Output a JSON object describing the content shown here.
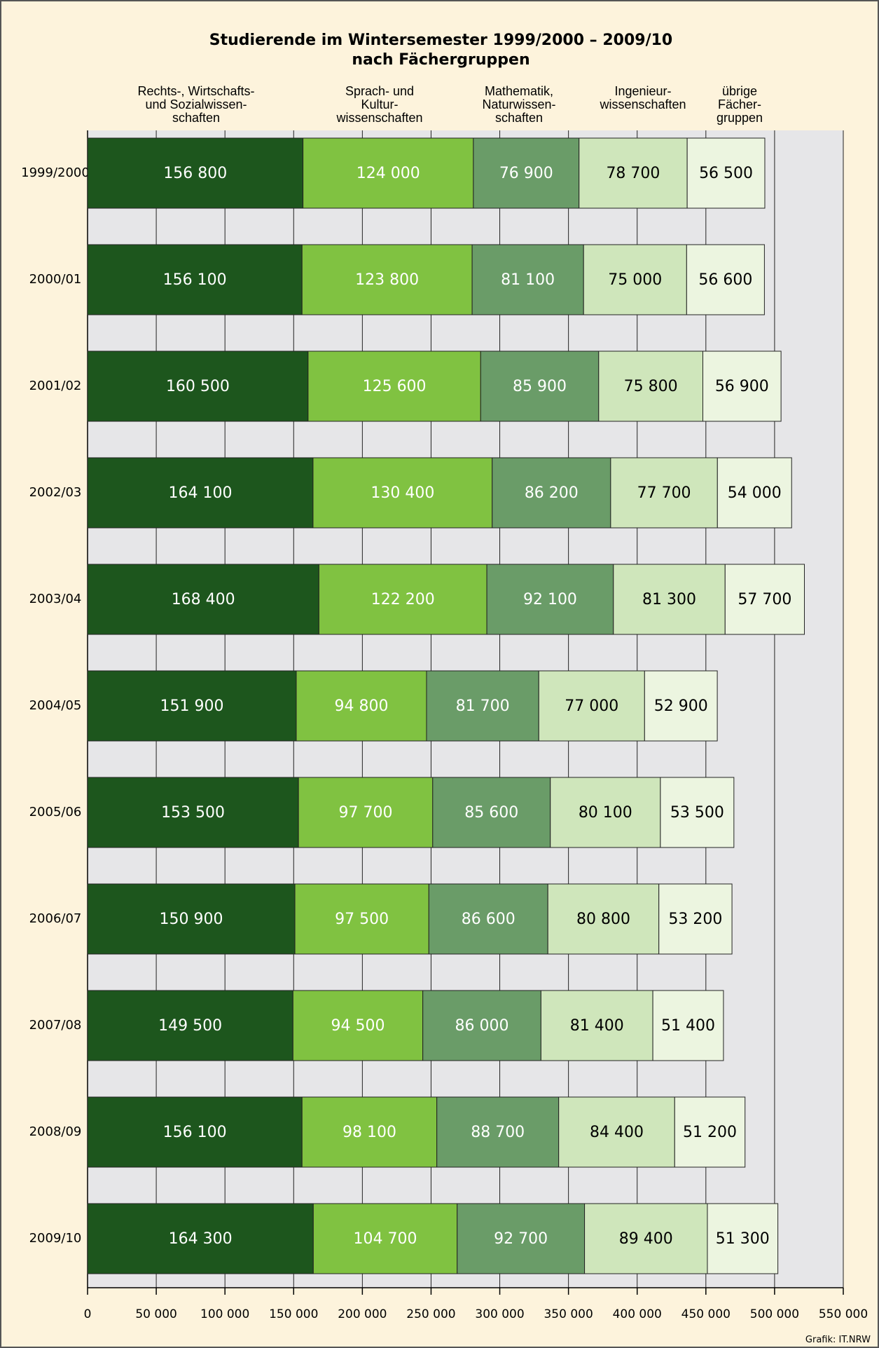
{
  "chart_data": {
    "type": "stacked_barh",
    "title": "Studierende im Wintersemester 1999/2000 – 2009/10\nnach Fächergruppen",
    "credit": "Grafik: IT.NRW",
    "categories": [
      "1999/2000",
      "2000/01",
      "2001/02",
      "2002/03",
      "2003/04",
      "2004/05",
      "2005/06",
      "2006/07",
      "2007/08",
      "2008/09",
      "2009/10"
    ],
    "series": [
      {
        "name": "Rechts-, Wirtschafts-\nund Sozialwissen-\nschaften",
        "color": "#1d561d",
        "values": [
          156800,
          156100,
          160500,
          164100,
          168400,
          151900,
          153500,
          150900,
          149500,
          156100,
          164300
        ],
        "value_labels": [
          "156 800",
          "156 100",
          "160 500",
          "164 100",
          "168 400",
          "151 900",
          "153 500",
          "150 900",
          "149 500",
          "156 100",
          "164 300"
        ]
      },
      {
        "name": "Sprach- und\nKultur-\nwissenschaften",
        "color": "#80c241",
        "values": [
          124000,
          123800,
          125600,
          130400,
          122200,
          94800,
          97700,
          97500,
          94500,
          98100,
          104700
        ],
        "value_labels": [
          "124 000",
          "123 800",
          "125 600",
          "130 400",
          "122 200",
          "94 800",
          "97 700",
          "97 500",
          "94 500",
          "98 100",
          "104 700"
        ]
      },
      {
        "name": "Mathematik,\nNaturwissen-\nschaften",
        "color": "#6a9c68",
        "values": [
          76900,
          81100,
          85900,
          86200,
          92100,
          81700,
          85600,
          86600,
          86000,
          88700,
          92700
        ],
        "value_labels": [
          "76 900",
          "81 100",
          "85 900",
          "86 200",
          "92 100",
          "81 700",
          "85 600",
          "86 600",
          "86 000",
          "88 700",
          "92 700"
        ]
      },
      {
        "name": "Ingenieur-\nwissenschaften",
        "color": "#cfe6bb",
        "values": [
          78700,
          75000,
          75800,
          77700,
          81300,
          77000,
          80100,
          80800,
          81400,
          84400,
          89400
        ],
        "value_labels": [
          "78 700",
          "75 000",
          "75 800",
          "77 700",
          "81 300",
          "77 000",
          "80 100",
          "80 800",
          "81 400",
          "84 400",
          "89 400"
        ]
      },
      {
        "name": "übrige\nFächer-\ngruppen",
        "color": "#ecf5e0",
        "values": [
          56500,
          56600,
          56900,
          54000,
          57700,
          52900,
          53500,
          53200,
          51400,
          51200,
          51300
        ],
        "value_labels": [
          "56 500",
          "56 600",
          "56 900",
          "54 000",
          "57 700",
          "52 900",
          "53 500",
          "53 200",
          "51 400",
          "51 200",
          "51 300"
        ]
      }
    ],
    "xlim": [
      0,
      550000
    ],
    "xticks": [
      0,
      {
        "value": 50000,
        "label": "50 000"
      },
      {
        "value": 100000,
        "label": "100 000"
      },
      {
        "value": 150000,
        "label": "150 000"
      },
      {
        "value": 200000,
        "label": "200 000"
      },
      {
        "value": 250000,
        "label": "250 000"
      },
      {
        "value": 300000,
        "label": "300 000"
      },
      {
        "value": 350000,
        "label": "350 000"
      },
      {
        "value": 400000,
        "label": "400 000"
      },
      {
        "value": 450000,
        "label": "450 000"
      },
      {
        "value": 500000,
        "label": "500 000"
      },
      {
        "value": 550000,
        "label": "550 000"
      }
    ],
    "grid": true
  }
}
